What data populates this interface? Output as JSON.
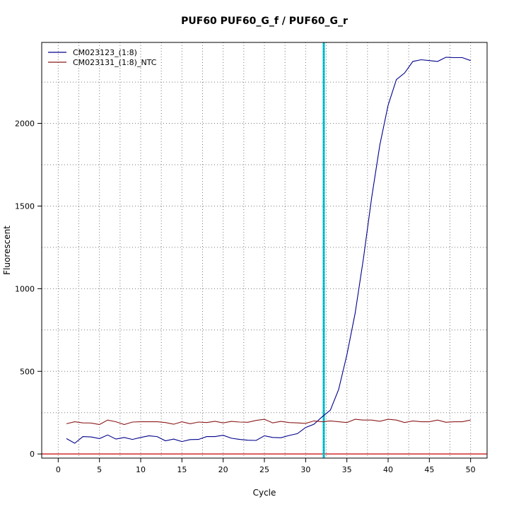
{
  "chart_data": {
    "type": "line",
    "title": "PUF60  PUF60_G_f / PUF60_G_r",
    "xlabel": "Cycle",
    "ylabel": "Fluorescent",
    "xlim": [
      -2,
      52
    ],
    "ylim": [
      -25,
      2490
    ],
    "xticks": [
      0,
      5,
      10,
      15,
      20,
      25,
      30,
      35,
      40,
      45,
      50
    ],
    "yticks": [
      0,
      500,
      1000,
      1500,
      2000
    ],
    "grid": true,
    "legend_position": "top-left",
    "threshold": {
      "y": 0,
      "color": "#cc0000"
    },
    "threshold_cycle": {
      "x": 32.2,
      "color": "#00c8d2"
    },
    "series": [
      {
        "name": "CM023123_(1:8)",
        "color": "#00008b",
        "x": [
          1,
          2,
          3,
          4,
          5,
          6,
          7,
          8,
          9,
          10,
          11,
          12,
          13,
          14,
          15,
          16,
          17,
          18,
          19,
          20,
          21,
          22,
          23,
          24,
          25,
          26,
          27,
          28,
          29,
          30,
          31,
          32,
          33,
          34,
          35,
          36,
          37,
          38,
          39,
          40,
          41,
          42,
          43,
          44,
          45,
          46,
          47,
          48,
          49,
          50
        ],
        "y": [
          93,
          65,
          105,
          103,
          93,
          115,
          90,
          100,
          88,
          100,
          110,
          105,
          80,
          90,
          75,
          87,
          88,
          105,
          105,
          113,
          95,
          88,
          83,
          82,
          110,
          100,
          98,
          112,
          123,
          160,
          180,
          225,
          265,
          390,
          600,
          850,
          1180,
          1550,
          1870,
          2110,
          2265,
          2305,
          2375,
          2385,
          2380,
          2375,
          2400,
          2398,
          2398,
          2380
        ]
      },
      {
        "name": "CM023131_(1:8)_NTC",
        "color": "#8b1a1a",
        "x": [
          1,
          2,
          3,
          4,
          5,
          6,
          7,
          8,
          9,
          10,
          11,
          12,
          13,
          14,
          15,
          16,
          17,
          18,
          19,
          20,
          21,
          22,
          23,
          24,
          25,
          26,
          27,
          28,
          29,
          30,
          31,
          32,
          33,
          34,
          35,
          36,
          37,
          38,
          39,
          40,
          41,
          42,
          43,
          44,
          45,
          46,
          47,
          48,
          49,
          50
        ],
        "y": [
          183,
          195,
          188,
          187,
          178,
          205,
          195,
          178,
          193,
          195,
          195,
          195,
          190,
          180,
          195,
          183,
          193,
          190,
          198,
          188,
          197,
          193,
          192,
          203,
          210,
          188,
          197,
          190,
          188,
          185,
          200,
          195,
          200,
          195,
          190,
          210,
          205,
          205,
          198,
          210,
          205,
          190,
          200,
          195,
          195,
          205,
          192,
          195,
          195,
          205
        ]
      }
    ]
  }
}
